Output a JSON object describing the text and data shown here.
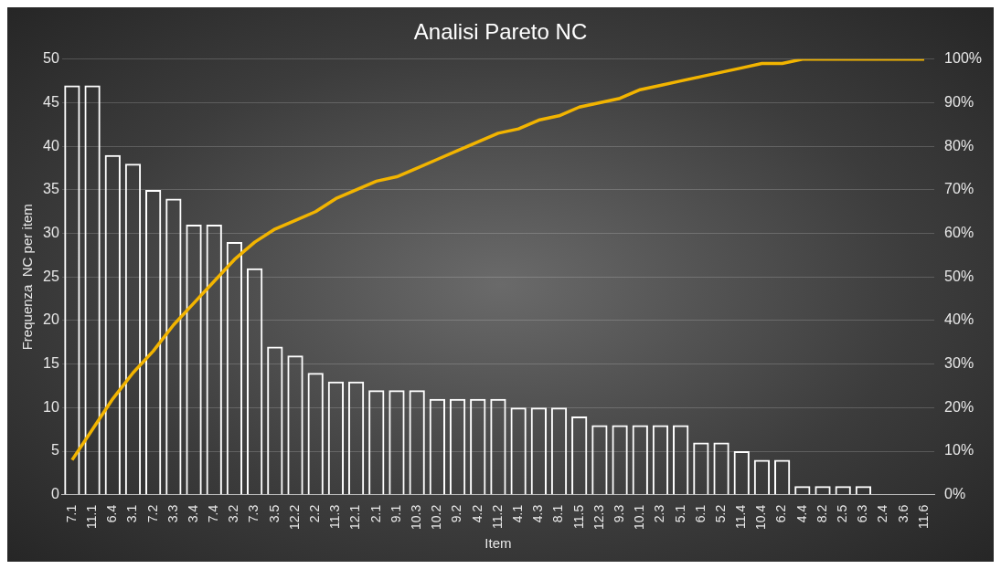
{
  "chart_data": {
    "type": "bar",
    "title": "Analisi Pareto NC",
    "xlabel": "Item",
    "ylabel": "Frequenza  NC per item",
    "categories": [
      "7.1",
      "11.1",
      "6.4",
      "3.1",
      "7.2",
      "3.3",
      "3.4",
      "7.4",
      "3.2",
      "7.3",
      "3.5",
      "12.2",
      "2.2",
      "11.3",
      "12.1",
      "2.1",
      "9.1",
      "10.3",
      "10.2",
      "9.2",
      "4.2",
      "11.2",
      "4.1",
      "4.3",
      "8.1",
      "11.5",
      "12.3",
      "9.3",
      "10.1",
      "2.3",
      "5.1",
      "6.1",
      "5.2",
      "11.4",
      "10.4",
      "6.2",
      "4.4",
      "8.2",
      "2.5",
      "6.3",
      "2.4",
      "3.6",
      "11.6"
    ],
    "series": [
      {
        "color": "#ffffff",
        "values": [
          47,
          47,
          39,
          38,
          35,
          34,
          31,
          31,
          29,
          26,
          17,
          16,
          14,
          13,
          13,
          12,
          12,
          12,
          11,
          11,
          11,
          11,
          10,
          10,
          10,
          9,
          8,
          8,
          8,
          8,
          8,
          6,
          6,
          5,
          4,
          4,
          1,
          1,
          1,
          1,
          0,
          0,
          0
        ]
      },
      {
        "type": "line",
        "axis": "y2",
        "color": "#f2b400",
        "values": [
          8,
          15,
          22,
          28,
          33,
          39,
          44,
          49,
          54,
          58,
          61,
          63,
          65,
          68,
          70,
          72,
          73,
          75,
          77,
          79,
          81,
          83,
          84,
          86,
          87,
          89,
          90,
          91,
          93,
          94,
          95,
          96,
          97,
          98,
          99,
          99,
          100,
          100,
          100,
          100,
          100,
          100,
          100
        ]
      }
    ],
    "ylim": [
      0,
      50
    ],
    "yticks": [
      0,
      5,
      10,
      15,
      20,
      25,
      30,
      35,
      40,
      45,
      50
    ],
    "y2lim": [
      0,
      100
    ],
    "y2ticks": [
      {
        "value": 0,
        "label": "0%"
      },
      {
        "value": 10,
        "label": "10%"
      },
      {
        "value": 20,
        "label": "20%"
      },
      {
        "value": 30,
        "label": "30%"
      },
      {
        "value": 40,
        "label": "40%"
      },
      {
        "value": 50,
        "label": "50%"
      },
      {
        "value": 60,
        "label": "60%"
      },
      {
        "value": 70,
        "label": "70%"
      },
      {
        "value": 80,
        "label": "80%"
      },
      {
        "value": 90,
        "label": "90%"
      },
      {
        "value": 100,
        "label": "100%"
      }
    ],
    "grid": "y",
    "legend": false,
    "marker": "none",
    "line_style": "solid"
  }
}
